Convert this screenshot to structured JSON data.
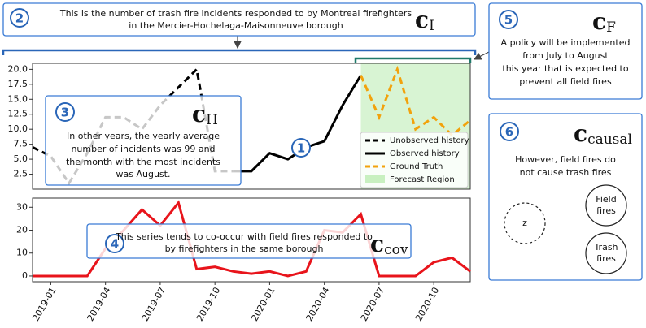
{
  "annotations": [
    {
      "number": "1"
    },
    {
      "number": "2",
      "lines": [
        "This is the number of trash fire incidents responded to by Montreal firefighters",
        "in the Mercier-Hochelaga-Maisonneuve borough"
      ],
      "symbol": {
        "main": "c",
        "sub": "I"
      }
    },
    {
      "number": "3",
      "lines": [
        "In other years, the yearly average",
        "number of incidents was 99 and",
        "the month with the most incidents",
        "was August."
      ],
      "symbol": {
        "main": "c",
        "sub": "H"
      }
    },
    {
      "number": "4",
      "lines": [
        "This series tends to co-occur with field fires responded to",
        "by firefighters in the same borough"
      ],
      "symbol": {
        "main": "c",
        "sub": "cov"
      }
    },
    {
      "number": "5",
      "lines": [
        "A policy will be implemented",
        "from July to August",
        "this year that is expected to",
        "prevent all field fires"
      ],
      "symbol": {
        "main": "c",
        "sub": "F"
      }
    },
    {
      "number": "6",
      "lines": [
        "However, field fires do",
        "not cause trash fires"
      ],
      "symbol": {
        "main": "c",
        "sub": "causal"
      }
    }
  ],
  "causal_graph": {
    "nodes": [
      {
        "lines": [
          "z"
        ]
      },
      {
        "lines": [
          "Field",
          "fires"
        ]
      },
      {
        "lines": [
          "Trash",
          "fires"
        ]
      }
    ]
  },
  "chart_data": [
    {
      "type": "line",
      "x": [
        "2018-12",
        "2019-01",
        "2019-02",
        "2019-03",
        "2019-04",
        "2019-05",
        "2019-06",
        "2019-07",
        "2019-08",
        "2019-09",
        "2019-10",
        "2019-11",
        "2019-12",
        "2020-01",
        "2020-02",
        "2020-03",
        "2020-04",
        "2020-05",
        "2020-06",
        "2020-07",
        "2020-08",
        "2020-09",
        "2020-10",
        "2020-11",
        "2020-12"
      ],
      "ylim": [
        0,
        21
      ],
      "yticks": [
        2.5,
        {
          "value": 5,
          "label": "5.0"
        },
        7.5,
        {
          "value": 10,
          "label": "10.0"
        },
        12.5,
        {
          "value": 15,
          "label": "15.0"
        },
        17.5,
        {
          "value": 20,
          "label": "20.0"
        }
      ],
      "legend": "lower right",
      "series": [
        {
          "name": "Unobserved history",
          "color": "#000000",
          "linestyle": "dashed",
          "values": [
            7,
            5.5,
            1,
            6,
            12,
            12,
            10,
            14,
            17,
            20,
            3,
            3,
            null,
            null,
            null,
            null,
            null,
            null,
            null,
            null,
            null,
            null,
            null,
            null,
            null
          ]
        },
        {
          "name": "Observed history",
          "color": "#000000",
          "linestyle": "solid",
          "values": [
            null,
            null,
            null,
            null,
            null,
            null,
            null,
            null,
            null,
            null,
            null,
            3,
            3,
            6,
            5,
            7,
            8,
            14,
            19,
            null,
            null,
            null,
            null,
            null,
            null
          ]
        },
        {
          "name": "Ground Truth",
          "color": "#f2a20c",
          "linestyle": "dashed",
          "values": [
            null,
            null,
            null,
            null,
            null,
            null,
            null,
            null,
            null,
            null,
            null,
            null,
            null,
            null,
            null,
            null,
            null,
            null,
            19,
            12,
            20,
            10,
            12,
            9,
            11.5
          ]
        }
      ],
      "region": {
        "name": "Forecast Region",
        "start": "2020-06",
        "color": "#c8f0c0"
      }
    },
    {
      "type": "line",
      "x": [
        "2018-12",
        "2019-01",
        "2019-02",
        "2019-03",
        "2019-04",
        "2019-05",
        "2019-06",
        "2019-07",
        "2019-08",
        "2019-09",
        "2019-10",
        "2019-11",
        "2019-12",
        "2020-01",
        "2020-02",
        "2020-03",
        "2020-04",
        "2020-05",
        "2020-06",
        "2020-07",
        "2020-08",
        "2020-09",
        "2020-10",
        "2020-11",
        "2020-12"
      ],
      "ylim": [
        -2.5,
        34
      ],
      "yticks": [
        0,
        10,
        20,
        30
      ],
      "xticks": [
        "2019-01",
        "2019-04",
        "2019-07",
        "2019-10",
        "2020-01",
        "2020-04",
        "2020-07",
        "2020-10"
      ],
      "series": [
        {
          "color": "#e8141b",
          "linestyle": "solid",
          "values": [
            0,
            0,
            0,
            0,
            12,
            20,
            29,
            22,
            32,
            3,
            4,
            2,
            1,
            2,
            0,
            2,
            20,
            19,
            27,
            0,
            0,
            0,
            6,
            8,
            2
          ]
        }
      ]
    }
  ]
}
